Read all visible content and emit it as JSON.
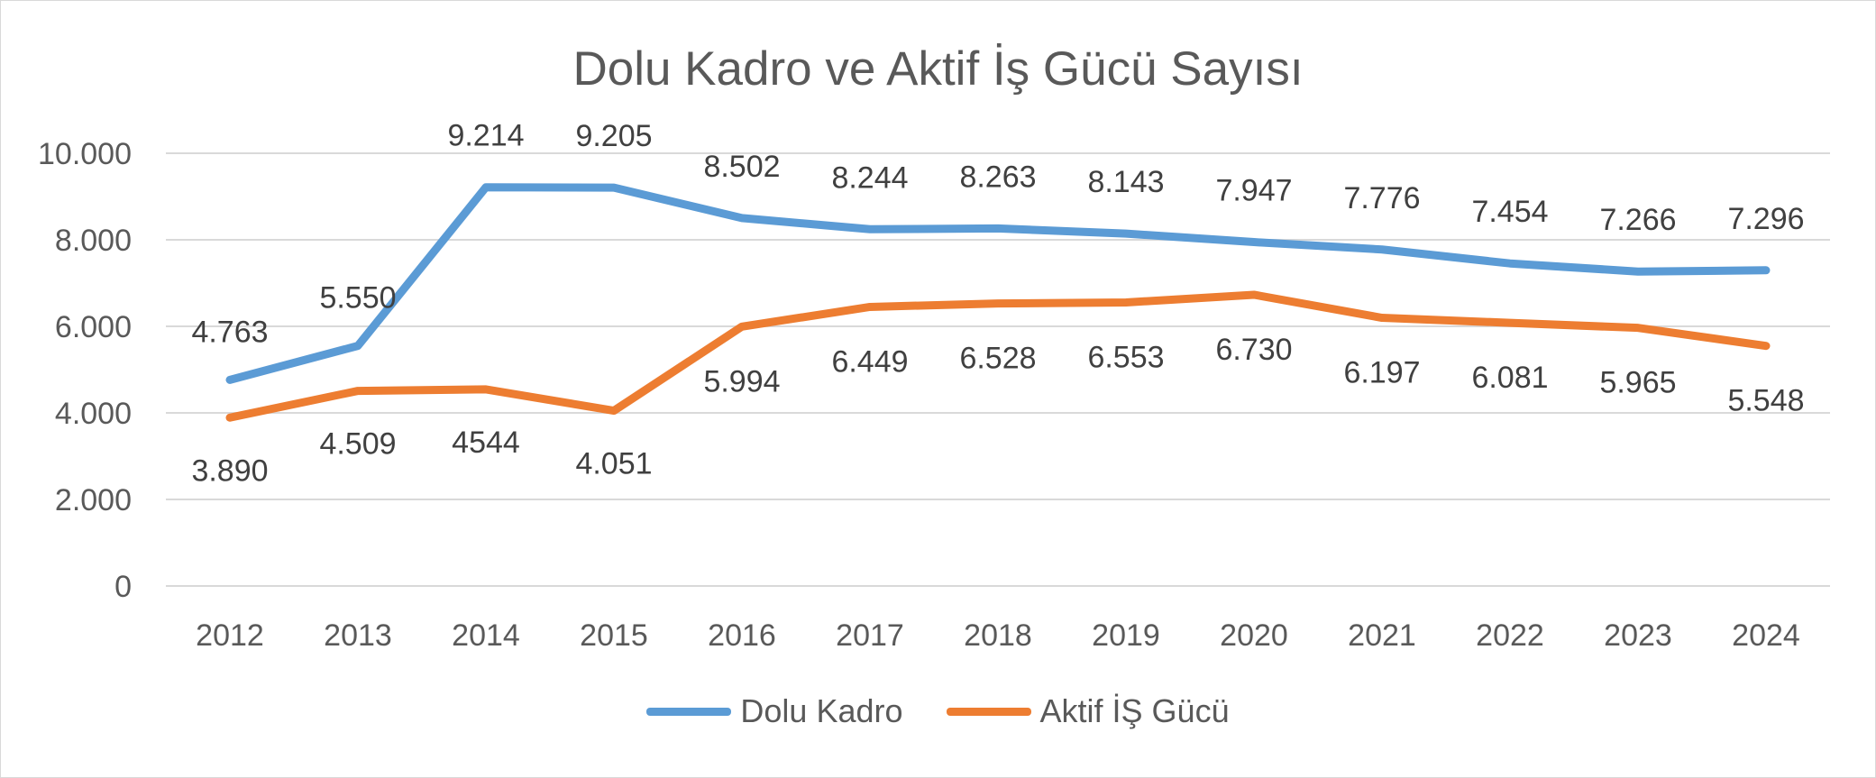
{
  "chart_data": {
    "type": "line",
    "title": "Dolu Kadro ve Aktif İş Gücü Sayısı",
    "xlabel": "",
    "ylabel": "",
    "categories": [
      "2012",
      "2013",
      "2014",
      "2015",
      "2016",
      "2017",
      "2018",
      "2019",
      "2020",
      "2021",
      "2022",
      "2023",
      "2024"
    ],
    "ylim": [
      0,
      10000
    ],
    "yticks": [
      0,
      2000,
      4000,
      6000,
      8000,
      10000
    ],
    "ytick_labels": [
      "0",
      "2.000",
      "4.000",
      "6.000",
      "8.000",
      "10.000"
    ],
    "grid": true,
    "legend_position": "bottom",
    "series": [
      {
        "name": "Dolu Kadro",
        "color": "#5b9bd5",
        "values": [
          4763,
          5550,
          9214,
          9205,
          8502,
          8244,
          8263,
          8143,
          7947,
          7776,
          7454,
          7266,
          7296
        ],
        "labels": [
          "4.763",
          "5.550",
          "9.214",
          "9.205",
          "8.502",
          "8.244",
          "8.263",
          "8.143",
          "7.947",
          "7.776",
          "7.454",
          "7.266",
          "7.296"
        ]
      },
      {
        "name": "Aktif İŞ Gücü",
        "color": "#ed7d31",
        "values": [
          3890,
          4509,
          4544,
          4051,
          5994,
          6449,
          6528,
          6553,
          6730,
          6197,
          6081,
          5965,
          5548
        ],
        "labels": [
          "3.890",
          "4.509",
          "4544",
          "4.051",
          "5.994",
          "6.449",
          "6.528",
          "6.553",
          "6.730",
          "6.197",
          "6.081",
          "5.965",
          "5.548"
        ]
      }
    ]
  }
}
